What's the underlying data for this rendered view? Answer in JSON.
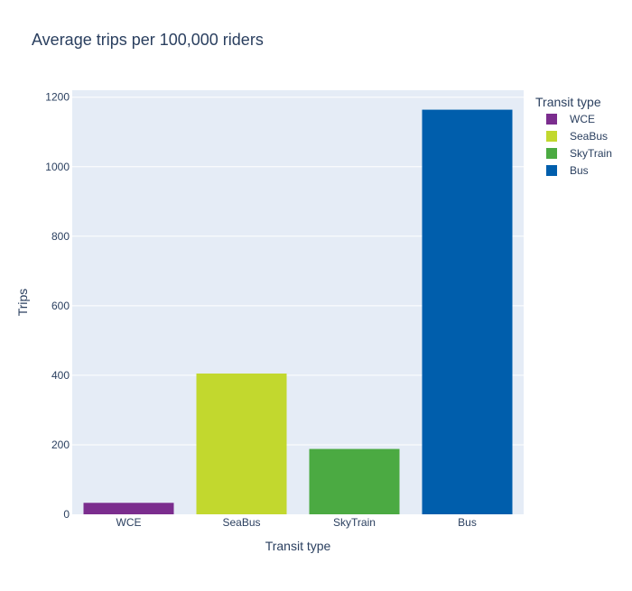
{
  "chart_data": {
    "type": "bar",
    "title": "Average trips per 100,000 riders",
    "xlabel": "Transit type",
    "ylabel": "Trips",
    "categories": [
      "WCE",
      "SeaBus",
      "SkyTrain",
      "Bus"
    ],
    "values": [
      33,
      405,
      188,
      1164
    ],
    "colors": [
      "#7B2D8E",
      "#C2D82E",
      "#4BAA42",
      "#005EAC"
    ],
    "ylim": [
      0,
      1220
    ],
    "yticks": [
      0,
      200,
      400,
      600,
      800,
      1000,
      1200
    ],
    "grid": true,
    "legend": {
      "title": "Transit type",
      "placement": "right",
      "items": [
        "WCE",
        "SeaBus",
        "SkyTrain",
        "Bus"
      ]
    }
  }
}
